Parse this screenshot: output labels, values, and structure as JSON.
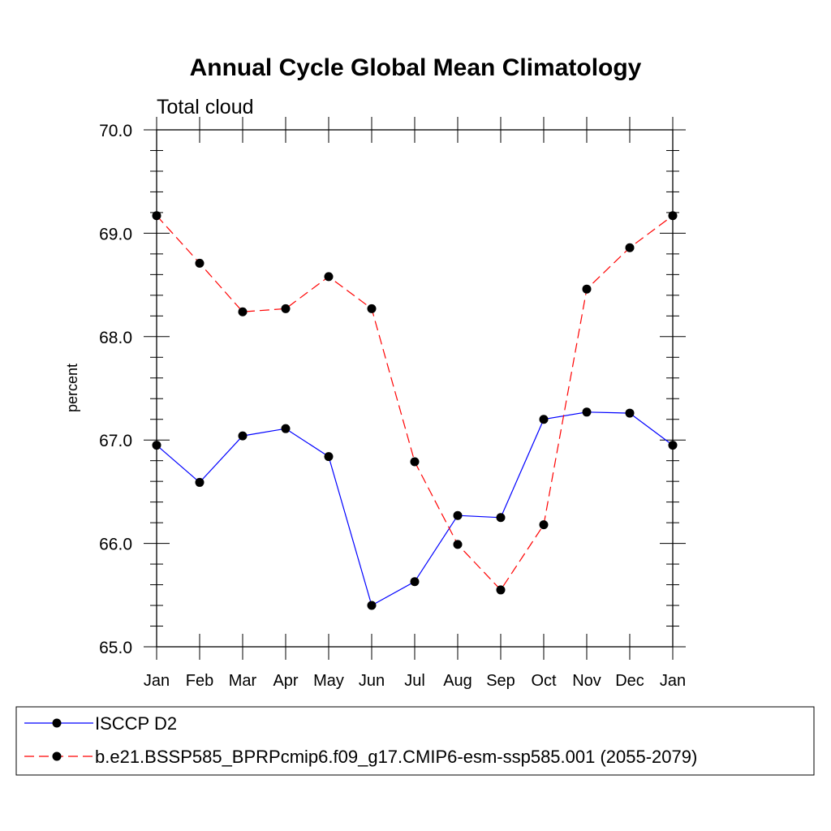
{
  "chart_data": {
    "type": "line",
    "title": "Annual Cycle Global Mean Climatology",
    "subtitle": "Total cloud",
    "xlabel": "",
    "ylabel": "percent",
    "categories": [
      "Jan",
      "Feb",
      "Mar",
      "Apr",
      "May",
      "Jun",
      "Jul",
      "Aug",
      "Sep",
      "Oct",
      "Nov",
      "Dec",
      "Jan"
    ],
    "ylim": [
      65.0,
      70.0
    ],
    "yticks": [
      "65.0",
      "66.0",
      "67.0",
      "68.0",
      "69.0",
      "70.0"
    ],
    "grid": false,
    "legend_position": "bottom",
    "series": [
      {
        "name": "ISCCP D2",
        "color": "#0000ff",
        "dashed": false,
        "values": [
          66.95,
          66.59,
          67.04,
          67.11,
          66.84,
          65.4,
          65.63,
          66.27,
          66.25,
          67.2,
          67.27,
          67.26,
          66.95
        ]
      },
      {
        "name": "b.e21.BSSP585_BPRPcmip6.f09_g17.CMIP6-esm-ssp585.001 (2055-2079)",
        "color": "#ff0000",
        "dashed": true,
        "values": [
          69.17,
          68.71,
          68.24,
          68.27,
          68.58,
          68.27,
          66.79,
          65.99,
          65.55,
          66.18,
          68.46,
          68.86,
          69.17
        ]
      }
    ]
  }
}
